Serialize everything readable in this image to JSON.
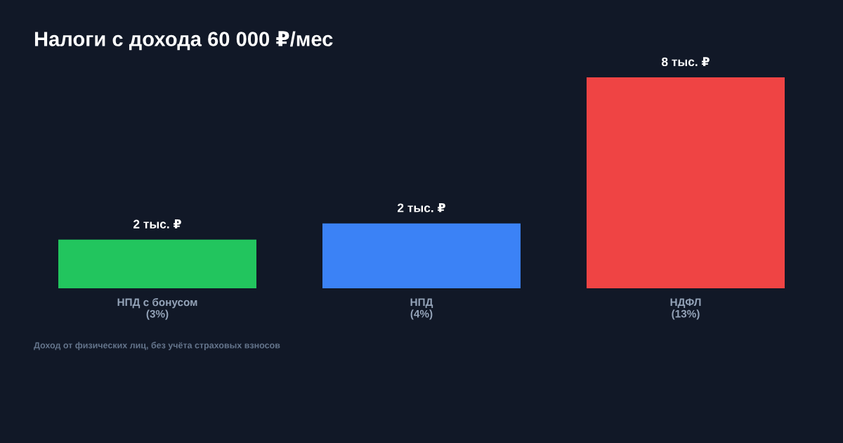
{
  "chart_data": {
    "type": "bar",
    "title": "Налоги с дохода 60 000 ₽/мес",
    "categories": [
      "НПД с бонусом\n(3%)",
      "НПД\n(4%)",
      "НДФЛ\n(13%)"
    ],
    "values": [
      1.8,
      2.4,
      7.8
    ],
    "colors": [
      "#22c55e",
      "#3b82f6",
      "#ef4444"
    ],
    "value_labels": [
      "2 тыс. ₽",
      "2 тыс. ₽",
      "8 тыс. ₽"
    ],
    "annotations": [
      "Доход от физических лиц, без учёта страховых взносов"
    ],
    "grid": false,
    "legend": false
  }
}
